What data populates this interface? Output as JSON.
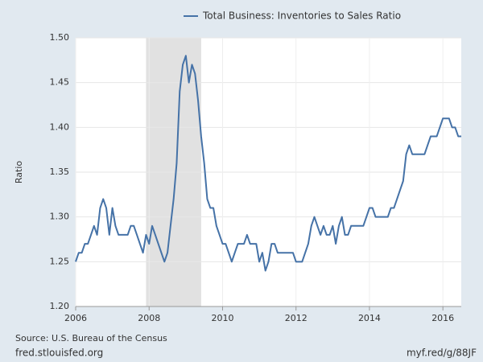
{
  "chart_data": {
    "type": "line",
    "series": [
      {
        "name": "Total Business: Inventories to Sales Ratio",
        "color": "#4572a7",
        "values": [
          1.25,
          1.26,
          1.26,
          1.27,
          1.27,
          1.28,
          1.29,
          1.28,
          1.31,
          1.32,
          1.31,
          1.28,
          1.31,
          1.29,
          1.28,
          1.28,
          1.28,
          1.28,
          1.29,
          1.29,
          1.28,
          1.27,
          1.26,
          1.28,
          1.27,
          1.29,
          1.28,
          1.27,
          1.26,
          1.25,
          1.26,
          1.29,
          1.32,
          1.36,
          1.44,
          1.47,
          1.48,
          1.45,
          1.47,
          1.46,
          1.43,
          1.39,
          1.36,
          1.32,
          1.31,
          1.31,
          1.29,
          1.28,
          1.27,
          1.27,
          1.26,
          1.25,
          1.26,
          1.27,
          1.27,
          1.27,
          1.28,
          1.27,
          1.27,
          1.27,
          1.25,
          1.26,
          1.24,
          1.25,
          1.27,
          1.27,
          1.26,
          1.26,
          1.26,
          1.26,
          1.26,
          1.26,
          1.25,
          1.25,
          1.25,
          1.26,
          1.27,
          1.29,
          1.3,
          1.29,
          1.28,
          1.29,
          1.28,
          1.28,
          1.29,
          1.27,
          1.29,
          1.3,
          1.28,
          1.28,
          1.29,
          1.29,
          1.29,
          1.29,
          1.29,
          1.3,
          1.31,
          1.31,
          1.3,
          1.3,
          1.3,
          1.3,
          1.3,
          1.31,
          1.31,
          1.32,
          1.33,
          1.34,
          1.37,
          1.38,
          1.37,
          1.37,
          1.37,
          1.37,
          1.37,
          1.38,
          1.39,
          1.39,
          1.39,
          1.4,
          1.41,
          1.41,
          1.41,
          1.4,
          1.4,
          1.39,
          1.39
        ]
      }
    ],
    "x": [
      2006,
      2006.083,
      2006.167,
      2006.25,
      2006.333,
      2006.417,
      2006.5,
      2006.583,
      2006.667,
      2006.75,
      2006.833,
      2006.917,
      2007,
      2007.083,
      2007.167,
      2007.25,
      2007.333,
      2007.417,
      2007.5,
      2007.583,
      2007.667,
      2007.75,
      2007.833,
      2007.917,
      2008,
      2008.083,
      2008.167,
      2008.25,
      2008.333,
      2008.417,
      2008.5,
      2008.583,
      2008.667,
      2008.75,
      2008.833,
      2008.917,
      2009,
      2009.083,
      2009.167,
      2009.25,
      2009.333,
      2009.417,
      2009.5,
      2009.583,
      2009.667,
      2009.75,
      2009.833,
      2009.917,
      2010,
      2010.083,
      2010.167,
      2010.25,
      2010.333,
      2010.417,
      2010.5,
      2010.583,
      2010.667,
      2010.75,
      2010.833,
      2010.917,
      2011,
      2011.083,
      2011.167,
      2011.25,
      2011.333,
      2011.417,
      2011.5,
      2011.583,
      2011.667,
      2011.75,
      2011.833,
      2011.917,
      2012,
      2012.083,
      2012.167,
      2012.25,
      2012.333,
      2012.417,
      2012.5,
      2012.583,
      2012.667,
      2012.75,
      2012.833,
      2012.917,
      2013,
      2013.083,
      2013.167,
      2013.25,
      2013.333,
      2013.417,
      2013.5,
      2013.583,
      2013.667,
      2013.75,
      2013.833,
      2013.917,
      2014,
      2014.083,
      2014.167,
      2014.25,
      2014.333,
      2014.417,
      2014.5,
      2014.583,
      2014.667,
      2014.75,
      2014.833,
      2014.917,
      2015,
      2015.083,
      2015.167,
      2015.25,
      2015.333,
      2015.417,
      2015.5,
      2015.583,
      2015.667,
      2015.75,
      2015.833,
      2015.917,
      2016,
      2016.083,
      2016.167,
      2016.25,
      2016.333,
      2016.417,
      2016.5
    ],
    "recession": [
      2007.917,
      2009.417
    ],
    "recession_color": "#e1e1e1",
    "xlim": [
      2006,
      2016.5
    ],
    "xticks": [
      2006,
      2008,
      2010,
      2012,
      2014,
      2016
    ],
    "ylim": [
      1.2,
      1.5
    ],
    "yticks": [
      {
        "value": 1.2,
        "label": "1.20"
      },
      {
        "value": 1.25,
        "label": "1.25"
      },
      {
        "value": 1.3,
        "label": "1.30"
      },
      {
        "value": 1.35,
        "label": "1.35"
      },
      {
        "value": 1.4,
        "label": "1.40"
      },
      {
        "value": 1.45,
        "label": "1.45"
      },
      {
        "value": 1.5,
        "label": "1.50"
      }
    ],
    "y_label": "Ratio",
    "grid": true,
    "source": "Source: U.S. Bureau of the Census",
    "site": "fred.stlouisfed.org",
    "short_url": "myf.red/g/88JF"
  }
}
